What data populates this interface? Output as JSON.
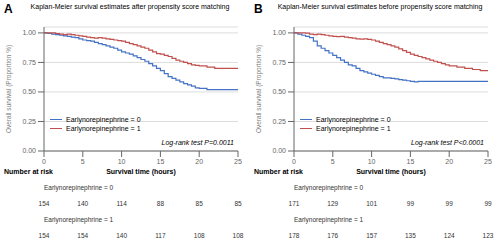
{
  "chart_data": [
    {
      "type": "step",
      "panel_label": "A",
      "title": "Kaplan-Meier survival estimates after propensity score matching",
      "xlabel": "Survival time (hours)",
      "ylabel": "Overall survival (Proportion %)",
      "annotations": [
        "Log-rank test P=0.0011"
      ],
      "xlim": [
        0,
        25
      ],
      "ylim": [
        0.0,
        1.05
      ],
      "xticks": [
        0,
        5,
        10,
        15,
        20,
        25
      ],
      "yticks": [
        {
          "value": 0.0,
          "label": "0.00"
        },
        {
          "value": 0.25,
          "label": "0.25"
        },
        {
          "value": 0.5,
          "label": "0.50"
        },
        {
          "value": 0.75,
          "label": "0.75"
        },
        {
          "value": 1.0,
          "label": "1.00"
        }
      ],
      "grid": true,
      "legend": "lower left",
      "series": [
        {
          "name": "Earlynorepinephrine = 0",
          "color": "#4472C4",
          "x": [
            0,
            0.5,
            1,
            1.5,
            2,
            2.5,
            3,
            3.5,
            4,
            4.5,
            5,
            5.5,
            6,
            6.5,
            7,
            7.5,
            8,
            8.5,
            9,
            9.5,
            10,
            10.5,
            11,
            11.5,
            12,
            12.5,
            13,
            13.5,
            14,
            14.5,
            15,
            15.5,
            16,
            16.5,
            17,
            17.5,
            18,
            18.5,
            19,
            19.5,
            20,
            21,
            22,
            23,
            24,
            25
          ],
          "values": [
            1.0,
            0.995,
            0.99,
            0.985,
            0.98,
            0.975,
            0.97,
            0.965,
            0.96,
            0.95,
            0.94,
            0.935,
            0.93,
            0.92,
            0.91,
            0.9,
            0.89,
            0.88,
            0.87,
            0.855,
            0.84,
            0.83,
            0.82,
            0.805,
            0.79,
            0.775,
            0.76,
            0.74,
            0.72,
            0.7,
            0.68,
            0.655,
            0.63,
            0.615,
            0.6,
            0.585,
            0.57,
            0.56,
            0.55,
            0.535,
            0.53,
            0.52,
            0.52,
            0.52,
            0.52,
            0.52
          ]
        },
        {
          "name": "Earlynorepinephrine = 1",
          "color": "#C0504D",
          "x": [
            0,
            0.5,
            1,
            1.5,
            2,
            2.5,
            3,
            3.5,
            4,
            4.5,
            5,
            5.5,
            6,
            6.5,
            7,
            7.5,
            8,
            8.5,
            9,
            9.5,
            10,
            10.5,
            11,
            11.5,
            12,
            12.5,
            13,
            13.5,
            14,
            14.5,
            15,
            15.5,
            16,
            16.5,
            17,
            17.5,
            18,
            18.5,
            19,
            19.5,
            20,
            21,
            22,
            23,
            24,
            25
          ],
          "values": [
            1.0,
            1.0,
            1.0,
            0.995,
            0.99,
            0.985,
            0.99,
            0.985,
            0.98,
            0.975,
            0.97,
            0.965,
            0.96,
            0.955,
            0.96,
            0.955,
            0.95,
            0.945,
            0.94,
            0.935,
            0.93,
            0.92,
            0.91,
            0.9,
            0.89,
            0.88,
            0.87,
            0.855,
            0.84,
            0.825,
            0.82,
            0.81,
            0.8,
            0.785,
            0.77,
            0.76,
            0.75,
            0.74,
            0.73,
            0.725,
            0.72,
            0.71,
            0.7,
            0.7,
            0.7,
            0.7
          ]
        }
      ],
      "risk_table": {
        "title": "Number at risk",
        "x": [
          0,
          5,
          10,
          15,
          20,
          25
        ],
        "series": [
          {
            "name": "Earlynorepinephrine = 0",
            "values": [
              154,
              140,
              114,
              88,
              85,
              85
            ]
          },
          {
            "name": "Earlynorepinephrine = 1",
            "values": [
              154,
              154,
              140,
              117,
              108,
              108
            ]
          }
        ]
      }
    },
    {
      "type": "step",
      "panel_label": "B",
      "title": "Kaplan-Meier survival estimates before propensity score matching",
      "xlabel": "Survival time (hours)",
      "ylabel": "Overall survival (Proportion %)",
      "annotations": [
        "Log-rank test P<0.0001"
      ],
      "xlim": [
        0,
        25
      ],
      "ylim": [
        0.0,
        1.05
      ],
      "xticks": [
        0,
        5,
        10,
        15,
        20,
        25
      ],
      "yticks": [
        {
          "value": 0.0,
          "label": "0.00"
        },
        {
          "value": 0.25,
          "label": "0.25"
        },
        {
          "value": 0.5,
          "label": "0.50"
        },
        {
          "value": 0.75,
          "label": "0.75"
        },
        {
          "value": 1.0,
          "label": "1.00"
        }
      ],
      "grid": true,
      "legend": "lower left",
      "series": [
        {
          "name": "Earlynorepinephrine = 0",
          "color": "#4472C4",
          "x": [
            0,
            0.5,
            1,
            1.5,
            2,
            2.5,
            3,
            3.5,
            4,
            4.5,
            5,
            5.5,
            6,
            6.5,
            7,
            7.5,
            8,
            8.5,
            9,
            9.5,
            10,
            10.5,
            11,
            11.5,
            12,
            12.5,
            13,
            13.5,
            14,
            14.5,
            15,
            15.5,
            16,
            17,
            18,
            19,
            20,
            21,
            22,
            23,
            24,
            25
          ],
          "values": [
            1.0,
            0.99,
            0.98,
            0.97,
            0.96,
            0.93,
            0.89,
            0.87,
            0.85,
            0.83,
            0.81,
            0.79,
            0.77,
            0.75,
            0.73,
            0.72,
            0.7,
            0.68,
            0.67,
            0.66,
            0.65,
            0.64,
            0.63,
            0.62,
            0.62,
            0.615,
            0.61,
            0.605,
            0.6,
            0.595,
            0.59,
            0.585,
            0.59,
            0.59,
            0.59,
            0.59,
            0.59,
            0.59,
            0.59,
            0.59,
            0.59,
            0.59
          ]
        },
        {
          "name": "Earlynorepinephrine = 1",
          "color": "#C0504D",
          "x": [
            0,
            0.5,
            1,
            1.5,
            2,
            2.5,
            3,
            3.5,
            4,
            4.5,
            5,
            5.5,
            6,
            6.5,
            7,
            7.5,
            8,
            8.5,
            9,
            9.5,
            10,
            10.5,
            11,
            11.5,
            12,
            12.5,
            13,
            13.5,
            14,
            14.5,
            15,
            15.5,
            16,
            16.5,
            17,
            17.5,
            18,
            18.5,
            19,
            19.5,
            20,
            21,
            22,
            23,
            24,
            25
          ],
          "values": [
            1.0,
            1.0,
            1.0,
            0.998,
            0.99,
            0.985,
            0.99,
            0.985,
            0.98,
            0.975,
            0.97,
            0.968,
            0.97,
            0.965,
            0.96,
            0.955,
            0.95,
            0.948,
            0.95,
            0.945,
            0.94,
            0.93,
            0.92,
            0.91,
            0.9,
            0.89,
            0.88,
            0.865,
            0.85,
            0.835,
            0.82,
            0.81,
            0.8,
            0.79,
            0.78,
            0.77,
            0.76,
            0.75,
            0.74,
            0.73,
            0.72,
            0.71,
            0.7,
            0.69,
            0.68,
            0.68
          ]
        }
      ],
      "risk_table": {
        "title": "Number at risk",
        "x": [
          0,
          5,
          10,
          15,
          20,
          25
        ],
        "series": [
          {
            "name": "Earlynorepinephrine = 0",
            "values": [
              171,
              129,
              101,
              99,
              99,
              99
            ]
          },
          {
            "name": "Earlynorepinephrine = 1",
            "values": [
              178,
              176,
              157,
              135,
              124,
              123
            ]
          }
        ]
      }
    }
  ]
}
